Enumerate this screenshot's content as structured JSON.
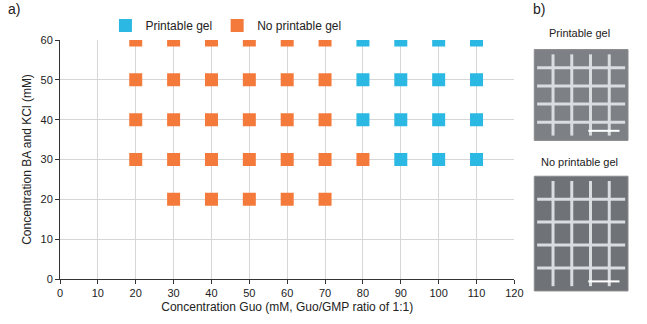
{
  "chart_data": {
    "type": "scatter",
    "x_label": "Concentration Guo (mM, Guo/GMP ratio of 1:1)",
    "y_label": "Concentration BA and KCl (mM)",
    "xlim": [
      0,
      120
    ],
    "xticks": [
      0,
      10,
      20,
      30,
      40,
      50,
      60,
      70,
      80,
      90,
      100,
      110,
      120
    ],
    "ylim": [
      0,
      60
    ],
    "yticks": [
      0,
      10,
      20,
      30,
      40,
      50,
      60
    ],
    "grid": true,
    "legend": "top",
    "marker": "square",
    "series": [
      {
        "name": "Printable gel",
        "color": "#2bb8e3",
        "x": [
          80,
          90,
          100,
          110,
          80,
          90,
          100,
          110,
          80,
          90,
          100,
          110,
          90,
          100,
          110
        ],
        "values": [
          60,
          60,
          60,
          60,
          50,
          50,
          50,
          50,
          40,
          40,
          40,
          40,
          30,
          30,
          30
        ]
      },
      {
        "name": "No printable gel",
        "color": "#f47a3c",
        "x": [
          20,
          30,
          40,
          50,
          60,
          70,
          20,
          30,
          40,
          50,
          60,
          70,
          20,
          30,
          40,
          50,
          60,
          70,
          20,
          30,
          40,
          50,
          60,
          70,
          80,
          30,
          40,
          50,
          60,
          70
        ],
        "values": [
          60,
          60,
          60,
          60,
          60,
          60,
          50,
          50,
          50,
          50,
          50,
          50,
          40,
          40,
          40,
          40,
          40,
          40,
          30,
          30,
          30,
          30,
          30,
          30,
          30,
          20,
          20,
          20,
          20,
          20
        ]
      }
    ],
    "annotations": [
      "a)",
      "b)",
      "Printable gel",
      "No printable gel"
    ]
  }
}
